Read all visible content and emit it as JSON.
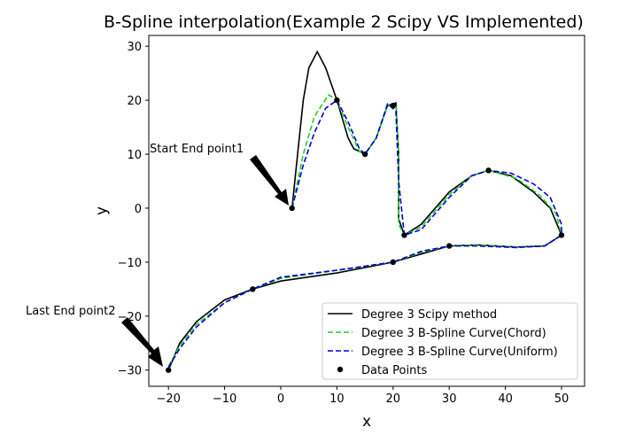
{
  "chart_data": {
    "type": "line",
    "title": "B-Spline interpolation(Example 2 Scipy VS Implemented)",
    "x_label": "x",
    "y_label": "y",
    "xlim": [
      -23.5,
      54.1
    ],
    "ylim": [
      -33,
      32
    ],
    "xticks": [
      {
        "value": -20,
        "label": "−20"
      },
      {
        "value": -10,
        "label": "−10"
      },
      0,
      10,
      20,
      30,
      40,
      50
    ],
    "yticks": [
      {
        "value": -30,
        "label": "−30"
      },
      {
        "value": -20,
        "label": "−20"
      },
      {
        "value": -10,
        "label": "−10"
      },
      0,
      10,
      20,
      30
    ],
    "legend": "lower right",
    "annotations": [
      "Start End point1",
      "Last End point2"
    ],
    "series": [
      {
        "name": "Degree 3 Scipy method",
        "color": "#000000",
        "style": "solid",
        "x": [
          2,
          3,
          4,
          5,
          6.5,
          8,
          10,
          12,
          13,
          15,
          17,
          19,
          20.5,
          21,
          21,
          22,
          25,
          30,
          34,
          37,
          41,
          45,
          48,
          50,
          47,
          42,
          35,
          30,
          25,
          20,
          10,
          0,
          -5,
          -10,
          -15,
          -18,
          -20
        ],
        "values": [
          0,
          10,
          20,
          26,
          29,
          26,
          20,
          13,
          11,
          10,
          13,
          19,
          19.5,
          10,
          -2,
          -5,
          -3,
          3,
          6,
          7,
          6,
          3,
          0,
          -5,
          -7,
          -7.2,
          -6.8,
          -7,
          -8.5,
          -10,
          -12,
          -13.5,
          -15,
          -17,
          -21,
          -25,
          -30
        ]
      },
      {
        "name": "Degree 3 B-Spline Curve(Chord)",
        "color": "#22cc22",
        "style": "dashed",
        "x": [
          2,
          4,
          6,
          8.5,
          10,
          12,
          14,
          15,
          17,
          19,
          20.5,
          21,
          21,
          22,
          25,
          30,
          34,
          37,
          42,
          46,
          49,
          50,
          47,
          42,
          35,
          30,
          25,
          20,
          10,
          0,
          -5,
          -10,
          -15,
          -18,
          -20
        ],
        "values": [
          0,
          10,
          17,
          21,
          20,
          15,
          10.5,
          10,
          13,
          19,
          19,
          10,
          -3,
          -5,
          -3.5,
          2.5,
          6,
          7,
          5.5,
          2.5,
          -1,
          -5,
          -7,
          -7.2,
          -6.8,
          -7,
          -8.2,
          -10,
          -11.5,
          -13,
          -15,
          -17.5,
          -21.5,
          -25.5,
          -29.3
        ]
      },
      {
        "name": "Degree 3 B-Spline Curve(Uniform)",
        "color": "#0000dd",
        "style": "dashed",
        "x": [
          2,
          4,
          6,
          8,
          10,
          12,
          14,
          15,
          17,
          19,
          20.5,
          21,
          22,
          25,
          30,
          34,
          37,
          41,
          45,
          48,
          50,
          50,
          47,
          42,
          35,
          30,
          25,
          20,
          10,
          0,
          -5,
          -10,
          -15,
          -18,
          -20
        ],
        "values": [
          0,
          8,
          14,
          18.5,
          20,
          16,
          11,
          10,
          13,
          19.3,
          18,
          5,
          -5,
          -4,
          2,
          6,
          7,
          6.5,
          4.5,
          2,
          -3,
          -5,
          -7,
          -7.3,
          -7,
          -7,
          -8,
          -10,
          -11.5,
          -12.8,
          -15,
          -17.5,
          -22,
          -26,
          -29.5
        ]
      },
      {
        "name": "Data Points",
        "color": "#000000",
        "style": "markers",
        "x": [
          2,
          10,
          15,
          20,
          22,
          37,
          50,
          30,
          20,
          -5,
          -20
        ],
        "values": [
          0,
          20,
          10,
          19,
          -5,
          7,
          -5,
          -7,
          -10,
          -15,
          -30
        ]
      }
    ]
  }
}
